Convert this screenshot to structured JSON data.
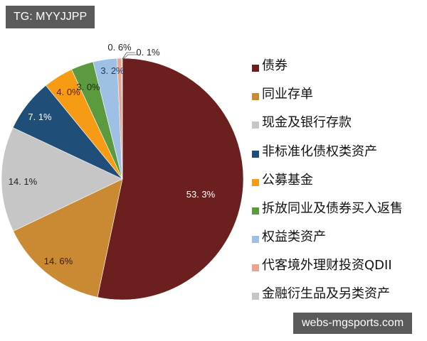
{
  "watermarks": {
    "top": "TG: MYYJJPP",
    "bottom": "webs-mgsports.com"
  },
  "chart_data": {
    "type": "pie",
    "title": "",
    "start_angle": "12 o'clock, clockwise",
    "legend_position": "right",
    "slices": [
      {
        "label": "债券",
        "value": 53.3,
        "display": "53. 3%",
        "color": "#6b1f1f",
        "label_color": "#ffffff"
      },
      {
        "label": "同业存单",
        "value": 14.6,
        "display": "14. 6%",
        "color": "#c98a33",
        "label_color": "#3a1a10"
      },
      {
        "label": "现金及银行存款",
        "value": 14.1,
        "display": "14. 1%",
        "color": "#c6c6c6",
        "label_color": "#222222"
      },
      {
        "label": "非标准化债权类资产",
        "value": 7.1,
        "display": "7. 1%",
        "color": "#1f4e79",
        "label_color": "#ffffff"
      },
      {
        "label": "公募基金",
        "value": 4.0,
        "display": "4. 0%",
        "color": "#f79a14",
        "label_color": "#5a1c10"
      },
      {
        "label": "拆放同业及债券买入返售",
        "value": 3.0,
        "display": "3. 0%",
        "color": "#5c9a3f",
        "label_color": "#1a3010"
      },
      {
        "label": "权益类资产",
        "value": 3.2,
        "display": "3. 2%",
        "color": "#9dc0e4",
        "label_color": "#1f3a60"
      },
      {
        "label": "代客境外理财投资QDII",
        "value": 0.6,
        "display": "0. 6%",
        "color": "#e8a690",
        "label_color": "#222222"
      },
      {
        "label": "金融衍生品及另类资产",
        "value": 0.1,
        "display": "0. 1%",
        "color": "#c6c6c6",
        "label_color": "#222222"
      }
    ]
  },
  "legend": {
    "items": [
      {
        "label": "债券",
        "color": "#6b1f1f"
      },
      {
        "label": "同业存单",
        "color": "#c98a33"
      },
      {
        "label": "现金及银行存款",
        "color": "#c6c6c6"
      },
      {
        "label": "非标准化债权类资产",
        "color": "#1f4e79"
      },
      {
        "label": "公募基金",
        "color": "#f79a14"
      },
      {
        "label": "拆放同业及债券买入返售",
        "color": "#5c9a3f"
      },
      {
        "label": "权益类资产",
        "color": "#9dc0e4"
      },
      {
        "label": "代客境外理财投资QDII",
        "color": "#e8a690"
      },
      {
        "label": "金融衍生品及另类资产",
        "color": "#c6c6c6"
      }
    ]
  }
}
